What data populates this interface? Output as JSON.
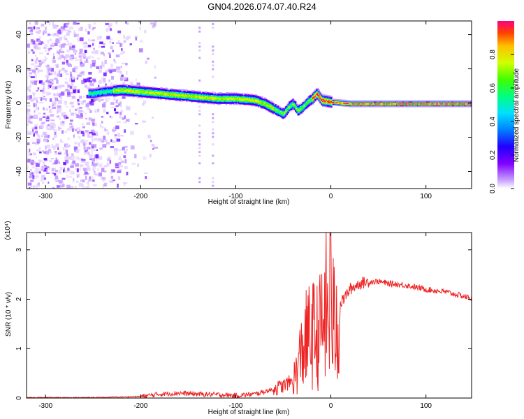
{
  "page": {
    "title": "GN04.2026.074.07.40.R24"
  },
  "chart_data": [
    {
      "type": "heatmap",
      "xlabel": "Height of straight line (km)",
      "ylabel": "Frequency (Hz)",
      "xlim": [
        -320,
        148
      ],
      "ylim": [
        -50,
        48
      ],
      "xticks": [
        -300,
        -200,
        -100,
        0,
        100
      ],
      "yticks": [
        -40,
        -20,
        0,
        20,
        40
      ],
      "colorbar": {
        "label": "Normalized spectral amplitude",
        "range": [
          0,
          1
        ],
        "ticks": [
          "0.0",
          "0.2",
          "0.4",
          "0.6",
          "0.8"
        ],
        "colors": [
          "#ffffff",
          "#c8a0ff",
          "#8000ff",
          "#2000ff",
          "#0080ff",
          "#00e0ff",
          "#00ff80",
          "#40ff00",
          "#d0ff00",
          "#ffc000",
          "#ff4000",
          "#ff0080"
        ]
      },
      "ridge": {
        "x": [
          -250,
          -240,
          -220,
          -200,
          -180,
          -160,
          -140,
          -120,
          -100,
          -80,
          -70,
          -60,
          -50,
          -45,
          -40,
          -35,
          -30,
          -25,
          -20,
          -15,
          -10,
          0,
          20,
          50,
          100,
          148
        ],
        "y": [
          6,
          7,
          8,
          7,
          6,
          5,
          4,
          3,
          3,
          2,
          0,
          -3,
          -6,
          -2,
          0,
          -4,
          -2,
          1,
          3,
          6,
          2,
          1,
          0,
          0,
          0,
          0
        ]
      },
      "noise_region_x": [
        -320,
        -215
      ],
      "vertical_streaks_x": [
        -138,
        -124
      ]
    },
    {
      "type": "line",
      "xlabel": "Height of straight line (km)",
      "ylabel": "SNR (10 * v/v)",
      "y_multiplier": "(x10⁴)",
      "xlim": [
        -320,
        148
      ],
      "ylim": [
        0,
        3.35
      ],
      "xticks": [
        -300,
        -200,
        -100,
        0,
        100
      ],
      "yticks": [
        0,
        1,
        2,
        3
      ],
      "series": [
        {
          "color": "#ee2222",
          "x": [
            -320,
            -250,
            -200,
            -180,
            -160,
            -140,
            -120,
            -100,
            -80,
            -60,
            -50,
            -40,
            -35,
            -30,
            -25,
            -20,
            -15,
            -10,
            -5,
            -2,
            0,
            5,
            10,
            20,
            30,
            40,
            50,
            60,
            80,
            100,
            120,
            148
          ],
          "y": [
            0.01,
            0.01,
            0.03,
            0.08,
            0.1,
            0.08,
            0.07,
            0.05,
            0.08,
            0.18,
            0.25,
            0.35,
            0.6,
            1.0,
            1.2,
            1.3,
            1.25,
            1.4,
            1.8,
            1.4,
            1.6,
            1.5,
            1.9,
            2.2,
            2.32,
            2.35,
            2.36,
            2.32,
            2.28,
            2.2,
            2.15,
            2.02
          ]
        }
      ]
    }
  ]
}
